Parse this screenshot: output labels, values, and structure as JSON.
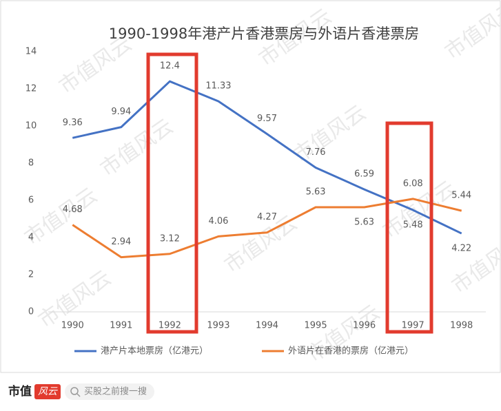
{
  "chart_data": {
    "type": "line",
    "title": "1990-1998年港产片香港票房与外语片香港票房",
    "categories": [
      "1990",
      "1991",
      "1992",
      "1993",
      "1994",
      "1995",
      "1996",
      "1997",
      "1998"
    ],
    "series": [
      {
        "name": "港产片本地票房（亿港元）",
        "color": "#4472c4",
        "values": [
          9.36,
          9.94,
          12.4,
          11.33,
          9.57,
          7.76,
          6.59,
          5.48,
          4.22
        ]
      },
      {
        "name": "外语片在香港的票房（亿港元）",
        "color": "#ed7d31",
        "values": [
          4.68,
          2.94,
          3.12,
          4.06,
          4.27,
          5.63,
          5.63,
          6.08,
          5.44
        ]
      }
    ],
    "ylim": [
      0,
      14
    ],
    "yticks": [
      0,
      2,
      4,
      6,
      8,
      10,
      12,
      14
    ],
    "grid": false,
    "legend": "bottom"
  },
  "watermark": "市值风云",
  "footer": {
    "logo": "市值",
    "logo_badge": "风云",
    "search": "买股之前搜一搜"
  }
}
